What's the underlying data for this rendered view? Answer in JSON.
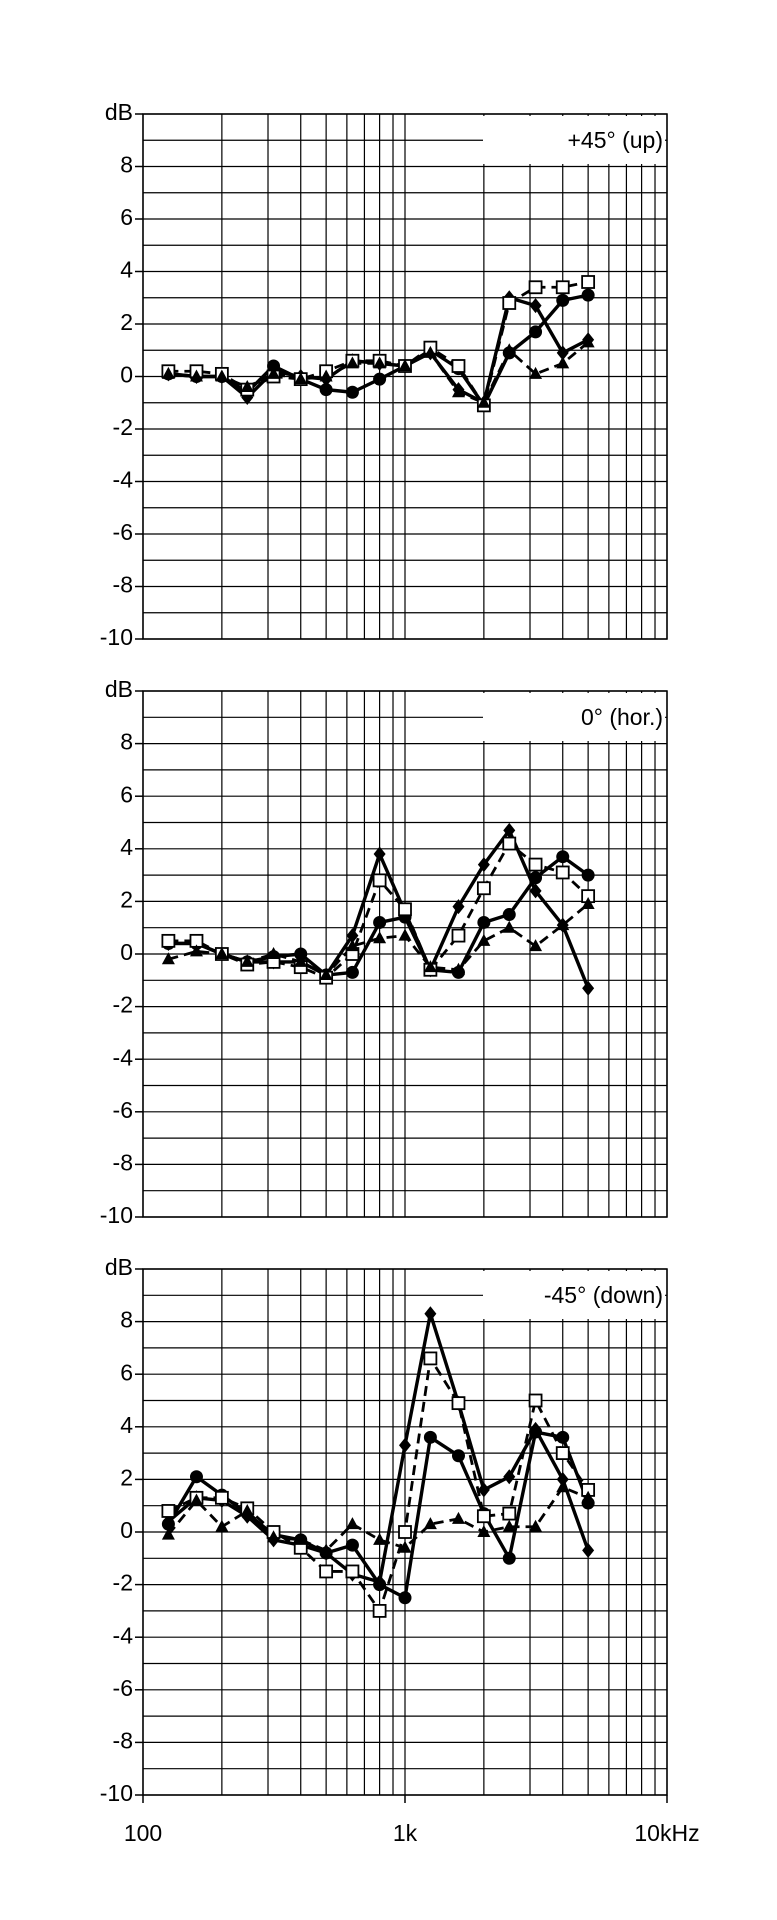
{
  "chart_data": [
    {
      "type": "line",
      "annotation": "+45° (up)",
      "logx": true,
      "grid": true,
      "xlim": [
        100,
        10000
      ],
      "ylim": [
        -10,
        10
      ],
      "xgrid": [
        100,
        200,
        300,
        400,
        500,
        600,
        700,
        800,
        900,
        1000,
        2000,
        3000,
        4000,
        5000,
        6000,
        7000,
        8000,
        9000,
        10000
      ],
      "ygrid": [
        -10,
        -9,
        -8,
        -7,
        -6,
        -5,
        -4,
        -3,
        -2,
        -1,
        0,
        1,
        2,
        3,
        4,
        5,
        6,
        7,
        8,
        9,
        10
      ],
      "yticks": [
        -10,
        -8,
        -6,
        -4,
        -2,
        0,
        2,
        4,
        6,
        8,
        {
          "value": 10,
          "label": "dB"
        }
      ],
      "x": [
        125,
        160,
        200,
        250,
        315,
        400,
        500,
        630,
        800,
        1000,
        1250,
        1600,
        2000,
        2500,
        3150,
        4000,
        5000
      ],
      "series": [
        {
          "marker": "circle",
          "dash": false,
          "color": "#000",
          "values": [
            0.1,
            0,
            0,
            -0.6,
            0.4,
            -0.1,
            -0.5,
            -0.6,
            -0.1,
            0.4,
            1,
            0.3,
            -1.1,
            0.9,
            1.7,
            2.9,
            3.1
          ]
        },
        {
          "marker": "diamond",
          "dash": false,
          "color": "#000",
          "values": [
            0.1,
            0,
            0,
            -0.8,
            0.2,
            0,
            -0.1,
            0.6,
            0.5,
            0.4,
            0.9,
            -0.5,
            -1,
            3,
            2.7,
            0.9,
            1.4
          ]
        },
        {
          "marker": "square",
          "dash": true,
          "color": "#000",
          "values": [
            0.2,
            0.2,
            0.1,
            -0.5,
            0,
            -0.1,
            0.2,
            0.6,
            0.6,
            0.4,
            1.1,
            0.4,
            -1.1,
            2.8,
            3.4,
            3.4,
            3.6
          ]
        },
        {
          "marker": "triangle",
          "dash": true,
          "color": "#000",
          "values": [
            0.1,
            0,
            0,
            -0.4,
            0.1,
            -0.1,
            0,
            0.5,
            0.5,
            0.4,
            0.9,
            -0.6,
            -1,
            1,
            0.1,
            0.5,
            1.3
          ]
        }
      ]
    },
    {
      "type": "line",
      "annotation": "0°  (hor.)",
      "logx": true,
      "grid": true,
      "xlim": [
        100,
        10000
      ],
      "ylim": [
        -10,
        10
      ],
      "xgrid": [
        100,
        200,
        300,
        400,
        500,
        600,
        700,
        800,
        900,
        1000,
        2000,
        3000,
        4000,
        5000,
        6000,
        7000,
        8000,
        9000,
        10000
      ],
      "ygrid": [
        -10,
        -9,
        -8,
        -7,
        -6,
        -5,
        -4,
        -3,
        -2,
        -1,
        0,
        1,
        2,
        3,
        4,
        5,
        6,
        7,
        8,
        9,
        10
      ],
      "yticks": [
        -10,
        -8,
        -6,
        -4,
        -2,
        0,
        2,
        4,
        6,
        8,
        {
          "value": 10,
          "label": "dB"
        }
      ],
      "x": [
        125,
        160,
        200,
        250,
        315,
        400,
        500,
        630,
        800,
        1000,
        1250,
        1600,
        2000,
        2500,
        3150,
        4000,
        5000
      ],
      "series": [
        {
          "marker": "circle",
          "dash": false,
          "color": "#000",
          "values": [
            0.4,
            0.4,
            0,
            -0.3,
            -0.1,
            0,
            -0.8,
            -0.7,
            1.2,
            1.4,
            -0.6,
            -0.7,
            1.2,
            1.5,
            2.9,
            3.7,
            3
          ]
        },
        {
          "marker": "diamond",
          "dash": false,
          "color": "#000",
          "values": [
            0.4,
            0.4,
            0,
            -0.3,
            -0.3,
            -0.3,
            -0.8,
            0.7,
            3.8,
            1.6,
            -0.6,
            1.8,
            3.4,
            4.7,
            2.4,
            1.1,
            -1.3
          ]
        },
        {
          "marker": "square",
          "dash": true,
          "color": "#000",
          "values": [
            0.5,
            0.5,
            0,
            -0.4,
            -0.3,
            -0.5,
            -0.9,
            0,
            2.8,
            1.7,
            -0.6,
            0.7,
            2.5,
            4.2,
            3.4,
            3.1,
            2.2
          ]
        },
        {
          "marker": "triangle",
          "dash": true,
          "color": "#000",
          "values": [
            -0.2,
            0.1,
            0,
            -0.3,
            0,
            -0.3,
            -0.8,
            0.3,
            0.6,
            0.7,
            -0.5,
            -0.6,
            0.5,
            1,
            0.3,
            1.1,
            1.9
          ]
        }
      ]
    },
    {
      "type": "line",
      "annotation": "-45° (down)",
      "logx": true,
      "grid": true,
      "xlim": [
        100,
        10000
      ],
      "ylim": [
        -10,
        10
      ],
      "xticks": [
        100,
        {
          "value": 1000,
          "label": "1k"
        },
        {
          "value": 10000,
          "label": "10kHz"
        }
      ],
      "xgrid": [
        100,
        200,
        300,
        400,
        500,
        600,
        700,
        800,
        900,
        1000,
        2000,
        3000,
        4000,
        5000,
        6000,
        7000,
        8000,
        9000,
        10000
      ],
      "ygrid": [
        -10,
        -9,
        -8,
        -7,
        -6,
        -5,
        -4,
        -3,
        -2,
        -1,
        0,
        1,
        2,
        3,
        4,
        5,
        6,
        7,
        8,
        9,
        10
      ],
      "yticks": [
        -10,
        -8,
        -6,
        -4,
        -2,
        0,
        2,
        4,
        6,
        8,
        {
          "value": 10,
          "label": "dB"
        }
      ],
      "x": [
        125,
        160,
        200,
        250,
        315,
        400,
        500,
        630,
        800,
        1000,
        1250,
        1600,
        2000,
        2500,
        3150,
        4000,
        5000
      ],
      "series": [
        {
          "marker": "circle",
          "dash": false,
          "color": "#000",
          "values": [
            0.3,
            2.1,
            1.4,
            0.7,
            -0.1,
            -0.3,
            -0.8,
            -0.5,
            -2,
            -2.5,
            3.6,
            2.9,
            0.7,
            -1,
            3.8,
            3.6,
            1.1
          ]
        },
        {
          "marker": "diamond",
          "dash": false,
          "color": "#000",
          "values": [
            0.4,
            1.3,
            1.2,
            0.6,
            -0.3,
            -0.5,
            -0.8,
            -1.6,
            -1.9,
            3.3,
            8.3,
            4.9,
            1.6,
            2.1,
            3.9,
            2,
            -0.7
          ]
        },
        {
          "marker": "square",
          "dash": true,
          "color": "#000",
          "values": [
            0.8,
            1.3,
            1.3,
            0.9,
            0,
            -0.6,
            -1.5,
            -1.5,
            -3,
            0,
            6.6,
            4.9,
            0.6,
            0.7,
            5,
            3,
            1.6
          ]
        },
        {
          "marker": "triangle",
          "dash": true,
          "color": "#000",
          "values": [
            -0.1,
            1.2,
            0.2,
            0.8,
            -0.2,
            -0.3,
            -0.7,
            0.3,
            -0.3,
            -0.6,
            0.3,
            0.5,
            0,
            0.2,
            0.2,
            1.7,
            1.3
          ]
        }
      ]
    }
  ]
}
